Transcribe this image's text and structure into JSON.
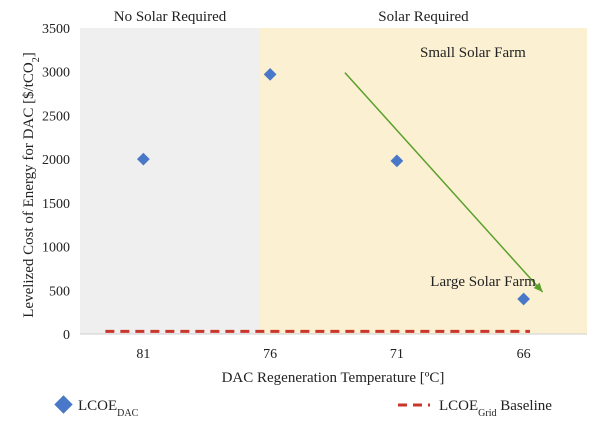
{
  "chart_data": {
    "type": "scatter",
    "title": "",
    "xlabel": "DAC Regeneration Temperature [ºC]",
    "ylabel_main": "Levelized Cost of Energy for DAC [$/tCO",
    "ylabel_sub": "2",
    "ylabel_end": "]",
    "categories": [
      "81",
      "76",
      "71",
      "66"
    ],
    "ylim": [
      0,
      3500
    ],
    "yticks": [
      0,
      500,
      1000,
      1500,
      2000,
      2500,
      3000,
      3500
    ],
    "series": [
      {
        "name": "LCOE",
        "name_sub": "DAC",
        "marker": "diamond",
        "color": "#4A78C8",
        "points": [
          {
            "x": 0,
            "y": 2000
          },
          {
            "x": 1,
            "y": 2970
          },
          {
            "x": 2,
            "y": 1980
          },
          {
            "x": 3,
            "y": 400
          }
        ]
      },
      {
        "name": "LCOE",
        "name_sub": "Grid",
        "name_end": " Baseline",
        "style": "dashed",
        "color": "#C9362B",
        "x_range": [
          -0.3,
          3.05
        ],
        "value": 30
      }
    ],
    "regions": [
      {
        "label": "No Solar Required",
        "x_range": [
          -0.5,
          0.92
        ],
        "color": "#EFEFEF"
      },
      {
        "label": "Solar Required",
        "x_range": [
          0.92,
          3.5
        ],
        "color": "#FBF0D2"
      }
    ],
    "annotations": [
      {
        "text": "Small Solar Farm",
        "x": 2.6,
        "y": 3170
      },
      {
        "text": "Large Solar Farm",
        "x": 2.68,
        "y": 550
      }
    ],
    "arrow": {
      "from": [
        1.59,
        2990
      ],
      "to": [
        3.15,
        480
      ],
      "color": "#5AA02C"
    }
  }
}
